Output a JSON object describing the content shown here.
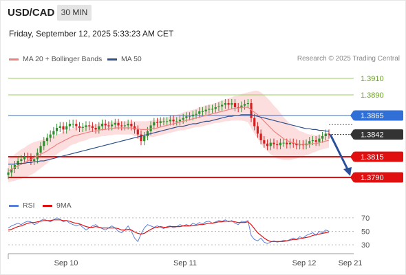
{
  "header": {
    "pair": "USD/CAD",
    "timeframe": "30 MIN",
    "timestamp": "Friday, September 12, 2025 5:33:23 AM CET"
  },
  "legend": {
    "ma20_label": "MA 20 + Bollinger Bands",
    "ma50_label": "MA 50",
    "rsi_label": "RSI",
    "rsi_ma_label": "9MA"
  },
  "credit": "Research © 2025 Trading Central",
  "colors": {
    "ma20": "#f08080",
    "ma50": "#2c4f8a",
    "band": "#fcd3d3",
    "bull": "#2f8f2f",
    "bear": "#d42020",
    "resistance": "#9acd5a",
    "pivot": "#2f6fd6",
    "support": "#e01010",
    "arrow": "#2a4f9a",
    "rsi": "#5a7fd6",
    "rsi_ma": "#e01010"
  },
  "chart_data": {
    "type": "candlestick",
    "x_ticks": [
      "Sep 10",
      "Sep 11",
      "Sep 12",
      "Sep 21"
    ],
    "ylim": [
      1.377,
      1.3925
    ],
    "levels": [
      {
        "label": "1.3910",
        "value": 1.391,
        "kind": "resistance"
      },
      {
        "label": "1.3890",
        "value": 1.389,
        "kind": "resistance"
      },
      {
        "label": "1.3865",
        "value": 1.3865,
        "kind": "pivot"
      },
      {
        "label": "1.3842",
        "value": 1.3842,
        "kind": "current"
      },
      {
        "label": "1.3815",
        "value": 1.3815,
        "kind": "support"
      },
      {
        "label": "1.3790",
        "value": 1.379,
        "kind": "support"
      }
    ],
    "forecast_arrow": {
      "from": 1.3842,
      "to": 1.379
    },
    "close": [
      1.3796,
      1.38,
      1.3805,
      1.381,
      1.3812,
      1.3815,
      1.3814,
      1.381,
      1.3812,
      1.382,
      1.3828,
      1.3834,
      1.3838,
      1.3842,
      1.3846,
      1.385,
      1.3852,
      1.3848,
      1.3852,
      1.3855,
      1.3855,
      1.3852,
      1.385,
      1.3851,
      1.3853,
      1.3852,
      1.385,
      1.3848,
      1.3852,
      1.3855,
      1.3853,
      1.3852,
      1.3854,
      1.3856,
      1.3853,
      1.3852,
      1.3853,
      1.3855,
      1.3852,
      1.3848,
      1.3842,
      1.3834,
      1.384,
      1.3846,
      1.3853,
      1.3857,
      1.3856,
      1.3858,
      1.3858,
      1.3858,
      1.386,
      1.3858,
      1.3858,
      1.386,
      1.3862,
      1.3864,
      1.3864,
      1.3866,
      1.3867,
      1.387,
      1.387,
      1.3872,
      1.3873,
      1.3873,
      1.3875,
      1.3876,
      1.3878,
      1.388,
      1.3878,
      1.388,
      1.3875,
      1.3874,
      1.3877,
      1.3879,
      1.388,
      1.3862,
      1.3852,
      1.3843,
      1.3835,
      1.3831,
      1.3828,
      1.3832,
      1.383,
      1.3829,
      1.3832,
      1.3832,
      1.383,
      1.3832,
      1.3831,
      1.3829,
      1.383,
      1.3829,
      1.3831,
      1.3834,
      1.3835,
      1.3833,
      1.3837,
      1.384,
      1.3843,
      1.3842
    ],
    "ma20": [
      1.3798,
      1.38,
      1.3802,
      1.3804,
      1.3806,
      1.3808,
      1.381,
      1.3812,
      1.3814,
      1.3816,
      1.3818,
      1.382,
      1.3822,
      1.3825,
      1.3827,
      1.383,
      1.3832,
      1.3834,
      1.3836,
      1.3838,
      1.384,
      1.3841,
      1.3842,
      1.3843,
      1.3844,
      1.3845,
      1.3846,
      1.3846,
      1.3847,
      1.3848,
      1.3848,
      1.3849,
      1.3849,
      1.385,
      1.385,
      1.385,
      1.385,
      1.385,
      1.385,
      1.3849,
      1.3849,
      1.3848,
      1.3848,
      1.3848,
      1.3849,
      1.3849,
      1.385,
      1.3851,
      1.3852,
      1.3853,
      1.3854,
      1.3855,
      1.3856,
      1.3857,
      1.3858,
      1.3859,
      1.386,
      1.3861,
      1.3862,
      1.3863,
      1.3864,
      1.3865,
      1.3866,
      1.3867,
      1.3868,
      1.3869,
      1.387,
      1.3871,
      1.3872,
      1.3873,
      1.3874,
      1.3874,
      1.3875,
      1.3875,
      1.3875,
      1.3872,
      1.3869,
      1.3866,
      1.3862,
      1.3858,
      1.3854,
      1.385,
      1.3846,
      1.3843,
      1.384,
      1.3837,
      1.3835,
      1.3833,
      1.3832,
      1.3831,
      1.383,
      1.383,
      1.383,
      1.383,
      1.3831,
      1.3831,
      1.3832,
      1.3833,
      1.3834,
      1.3835
    ],
    "ma50": [
      1.3806,
      1.3806,
      1.3806,
      1.3807,
      1.3807,
      1.3807,
      1.3808,
      1.3808,
      1.3809,
      1.3809,
      1.381,
      1.381,
      1.3811,
      1.3812,
      1.3813,
      1.3814,
      1.3815,
      1.3816,
      1.3817,
      1.3818,
      1.3819,
      1.382,
      1.3821,
      1.3822,
      1.3823,
      1.3824,
      1.3825,
      1.3826,
      1.3827,
      1.3828,
      1.3829,
      1.383,
      1.3831,
      1.3832,
      1.3833,
      1.3834,
      1.3835,
      1.3836,
      1.3837,
      1.3838,
      1.3839,
      1.384,
      1.3841,
      1.3842,
      1.3843,
      1.3844,
      1.3845,
      1.3846,
      1.3847,
      1.3848,
      1.3849,
      1.385,
      1.3851,
      1.3852,
      1.3852,
      1.3853,
      1.3854,
      1.3855,
      1.3855,
      1.3856,
      1.3857,
      1.3858,
      1.3858,
      1.3859,
      1.386,
      1.3861,
      1.3862,
      1.3863,
      1.3864,
      1.3864,
      1.3865,
      1.3865,
      1.3866,
      1.3866,
      1.3866,
      1.3866,
      1.3865,
      1.3864,
      1.3863,
      1.3862,
      1.3861,
      1.386,
      1.3859,
      1.3858,
      1.3857,
      1.3856,
      1.3855,
      1.3854,
      1.3853,
      1.3852,
      1.3851,
      1.385,
      1.3849,
      1.3849,
      1.3848,
      1.3848,
      1.3847,
      1.3847,
      1.3846,
      1.3846
    ],
    "band_half_width": [
      0.0014,
      0.0015,
      0.0016,
      0.0017,
      0.0018,
      0.0018,
      0.0019,
      0.0019,
      0.0019,
      0.0018,
      0.0017,
      0.0016,
      0.0015,
      0.0014,
      0.0013,
      0.0012,
      0.0011,
      0.0011,
      0.0011,
      0.001,
      0.001,
      0.001,
      0.0009,
      0.0009,
      0.0009,
      0.0008,
      0.0008,
      0.0008,
      0.0008,
      0.0008,
      0.0008,
      0.0008,
      0.0008,
      0.0008,
      0.0008,
      0.0008,
      0.0008,
      0.0008,
      0.0008,
      0.0009,
      0.0009,
      0.001,
      0.001,
      0.001,
      0.001,
      0.001,
      0.001,
      0.001,
      0.001,
      0.001,
      0.001,
      0.001,
      0.001,
      0.001,
      0.0011,
      0.0011,
      0.0011,
      0.0011,
      0.0011,
      0.0012,
      0.0012,
      0.0012,
      0.0012,
      0.0012,
      0.0012,
      0.0013,
      0.0013,
      0.0013,
      0.0014,
      0.0014,
      0.0015,
      0.0015,
      0.0016,
      0.0017,
      0.0018,
      0.0022,
      0.0026,
      0.0029,
      0.0031,
      0.0032,
      0.0032,
      0.0032,
      0.0031,
      0.003,
      0.0028,
      0.0026,
      0.0024,
      0.0022,
      0.002,
      0.0018,
      0.0016,
      0.0015,
      0.0013,
      0.0012,
      0.0011,
      0.001,
      0.0009,
      0.0009,
      0.0009,
      0.0009
    ],
    "rsi": {
      "y_ticks": [
        70,
        50,
        30
      ],
      "ylim": [
        20,
        80
      ],
      "rsi": [
        55,
        58,
        60,
        62,
        60,
        63,
        65,
        64,
        60,
        62,
        66,
        68,
        66,
        64,
        67,
        70,
        68,
        64,
        66,
        62,
        60,
        58,
        60,
        56,
        52,
        55,
        58,
        60,
        56,
        54,
        52,
        55,
        58,
        55,
        50,
        48,
        52,
        58,
        50,
        40,
        35,
        46,
        55,
        60,
        58,
        56,
        58,
        56,
        54,
        57,
        58,
        55,
        57,
        60,
        58,
        60,
        58,
        62,
        60,
        63,
        61,
        64,
        65,
        62,
        64,
        66,
        65,
        67,
        64,
        66,
        62,
        60,
        65,
        64,
        66,
        44,
        38,
        36,
        40,
        34,
        32,
        34,
        36,
        34,
        35,
        37,
        36,
        38,
        40,
        38,
        42,
        40,
        44,
        46,
        48,
        44,
        50,
        48,
        52,
        50
      ],
      "ma": [
        52,
        53,
        55,
        57,
        58,
        60,
        62,
        63,
        63,
        64,
        65,
        66,
        66,
        66,
        67,
        67,
        67,
        66,
        66,
        65,
        63,
        62,
        61,
        59,
        57,
        56,
        56,
        57,
        56,
        55,
        55,
        55,
        55,
        55,
        54,
        52,
        52,
        53,
        52,
        49,
        47,
        46,
        47,
        50,
        53,
        55,
        56,
        57,
        56,
        56,
        57,
        57,
        57,
        57,
        58,
        58,
        58,
        59,
        59,
        60,
        60,
        61,
        62,
        62,
        63,
        64,
        64,
        65,
        65,
        65,
        64,
        63,
        63,
        63,
        64,
        60,
        54,
        48,
        44,
        40,
        37,
        35,
        35,
        35,
        35,
        35,
        36,
        37,
        38,
        38,
        39,
        40,
        41,
        42,
        44,
        45,
        46,
        47,
        48,
        49
      ]
    }
  }
}
